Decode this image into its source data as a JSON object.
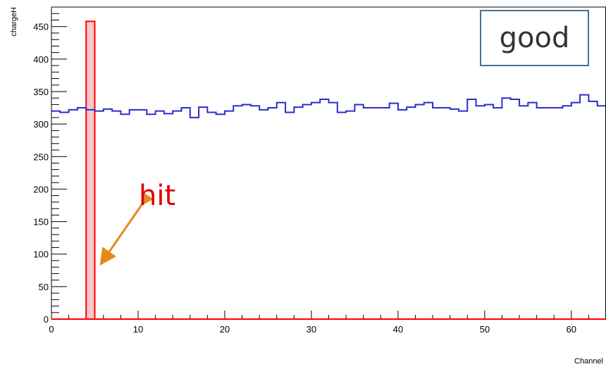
{
  "chart_data": {
    "type": "histogram",
    "title": "",
    "xlabel": "Channel",
    "ylabel": "chargeH",
    "xlim": [
      0,
      64
    ],
    "ylim": [
      0,
      480
    ],
    "x_ticks": [
      0,
      10,
      20,
      30,
      40,
      50,
      60
    ],
    "y_ticks": [
      0,
      50,
      100,
      150,
      200,
      250,
      300,
      350,
      400,
      450
    ],
    "series": [
      {
        "color": "#2c2ccc",
        "style": "step",
        "bin_width": 1,
        "values": [
          320,
          318,
          322,
          325,
          322,
          320,
          323,
          320,
          315,
          322,
          322,
          315,
          320,
          316,
          320,
          325,
          310,
          326,
          318,
          315,
          320,
          328,
          330,
          328,
          322,
          325,
          333,
          318,
          326,
          330,
          333,
          338,
          333,
          318,
          320,
          330,
          325,
          325,
          325,
          332,
          322,
          326,
          330,
          333,
          325,
          325,
          323,
          320,
          338,
          328,
          330,
          325,
          340,
          338,
          328,
          333,
          325,
          325,
          325,
          328,
          333,
          345,
          335,
          328
        ]
      },
      {
        "color": "#ff0000",
        "fill": "#f9c8c8",
        "style": "bar",
        "bin_width": 1,
        "values": [
          0,
          0,
          0,
          0,
          458,
          0,
          0,
          0,
          0,
          0,
          0,
          0,
          0,
          0,
          0,
          0,
          0,
          0,
          0,
          0,
          0,
          0,
          0,
          0,
          0,
          0,
          0,
          0,
          0,
          0,
          0,
          0,
          0,
          0,
          0,
          0,
          0,
          0,
          0,
          0,
          0,
          0,
          0,
          0,
          0,
          0,
          0,
          0,
          0,
          0,
          0,
          0,
          0,
          0,
          0,
          0,
          0,
          0,
          0,
          0,
          0,
          0,
          0,
          0
        ]
      }
    ],
    "annotations": {
      "box_text": "good",
      "arrow_text": "hit",
      "arrow_color": "#e8891a",
      "box_border_color": "#4a6f8a",
      "arrow_text_color": "#e00000"
    }
  }
}
